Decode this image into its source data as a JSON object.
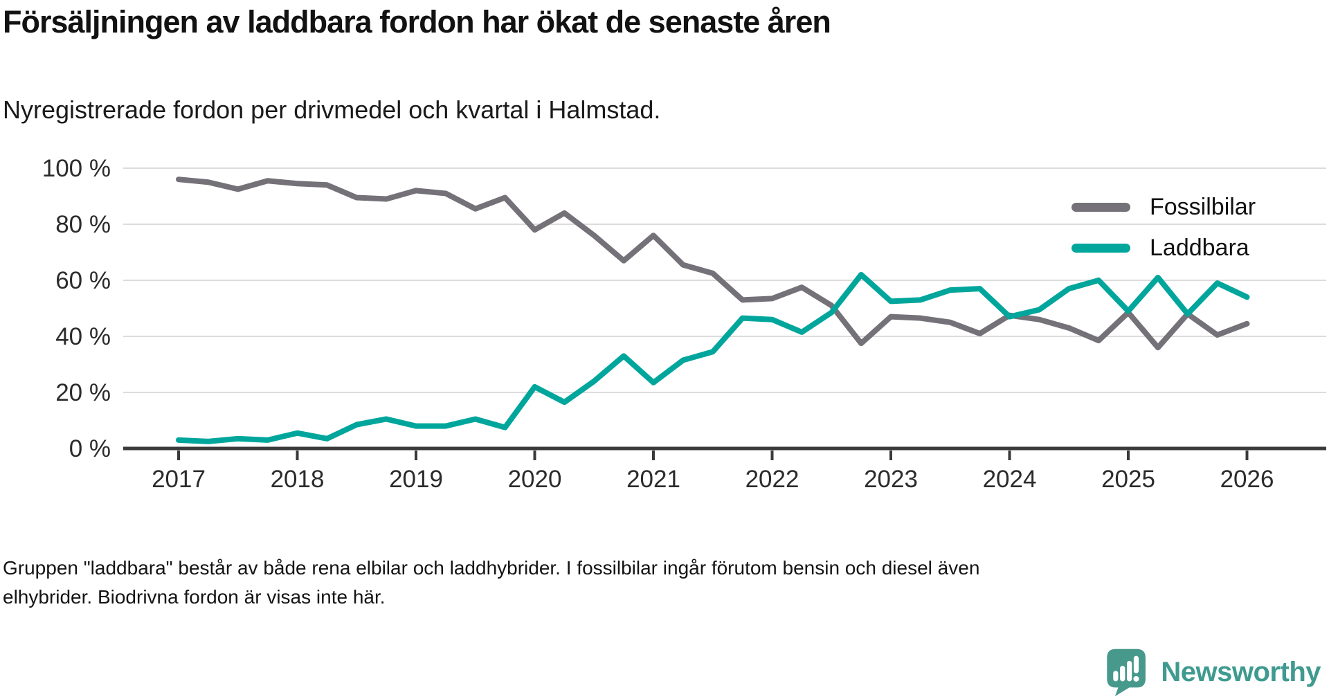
{
  "header": {
    "title": "Försäljningen av laddbara fordon har ökat de senaste åren",
    "subtitle": "Nyregistrerade fordon per drivmedel och kvartal i Halmstad."
  },
  "footer": {
    "line1": "Gruppen \"laddbara\" består av både rena elbilar och laddhybrider. I fossilbilar ingår förutom bensin och diesel även",
    "line2": "elhybrider. Biodrivna fordon är visas inte här."
  },
  "logo": {
    "text": "Newsworthy",
    "color": "#3f9a8f",
    "icon_color": "#47998c"
  },
  "chart_data": {
    "type": "line",
    "title": "Försäljningen av laddbara fordon har ökat de senaste åren",
    "subtitle": "Nyregistrerade fordon per drivmedel och kvartal i Halmstad.",
    "x_unit": "quarter",
    "x_start_year": 2017,
    "x_step_years": 0.25,
    "ylim": [
      0,
      100
    ],
    "grid": "horizontal",
    "legend_position": "top-right",
    "colors": {
      "grid": "#dcdcdc",
      "axis": "#3a3a3a",
      "axis_text": "#2b2b2b"
    },
    "y_ticks": [
      {
        "value": 0,
        "label": "0 %"
      },
      {
        "value": 20,
        "label": "20 %"
      },
      {
        "value": 40,
        "label": "40 %"
      },
      {
        "value": 60,
        "label": "60 %"
      },
      {
        "value": 80,
        "label": "80 %"
      },
      {
        "value": 100,
        "label": "100 %"
      }
    ],
    "x_ticks": [
      {
        "label": "2017"
      },
      {
        "label": "2018"
      },
      {
        "label": "2019"
      },
      {
        "label": "2020"
      },
      {
        "label": "2021"
      },
      {
        "label": "2022"
      },
      {
        "label": "2023"
      },
      {
        "label": "2024"
      },
      {
        "label": "2025"
      },
      {
        "label": "2026"
      }
    ],
    "series": [
      {
        "name": "Fossilbilar",
        "color": "#747278",
        "values": [
          96,
          95,
          92.5,
          95.5,
          94.5,
          94,
          89.5,
          89,
          92,
          91,
          85.5,
          89.5,
          78,
          84,
          76,
          67,
          76,
          65.5,
          62.5,
          53,
          53.5,
          57.5,
          51,
          37.5,
          47,
          46.5,
          45,
          41,
          47.5,
          46,
          43,
          38.5,
          48.5,
          36,
          48,
          40.5,
          44.5
        ]
      },
      {
        "name": "Laddbara",
        "color": "#00a69c",
        "values": [
          3,
          2.5,
          3.5,
          3,
          5.5,
          3.5,
          8.5,
          10.5,
          8,
          8,
          10.5,
          7.5,
          22,
          16.5,
          24,
          33,
          23.5,
          31.5,
          34.5,
          46.5,
          46,
          41.5,
          48.5,
          62,
          52.5,
          53,
          56.5,
          57,
          47,
          49.5,
          57,
          60,
          49,
          61,
          48,
          59,
          54
        ]
      }
    ]
  }
}
